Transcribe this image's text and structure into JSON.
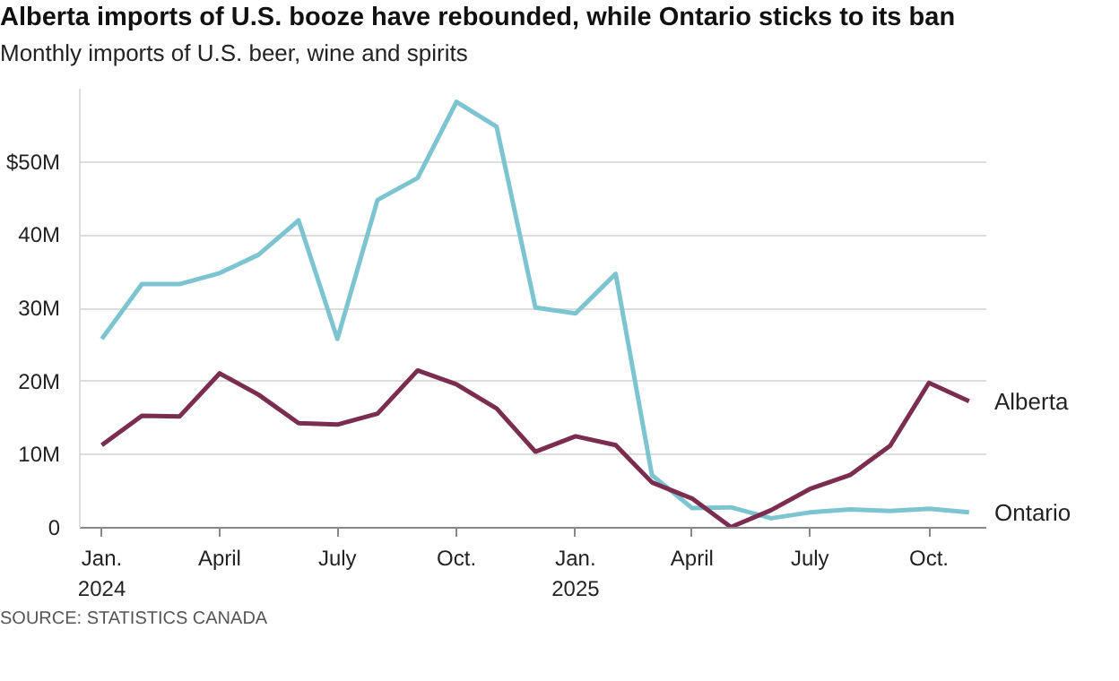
{
  "chart_data": {
    "type": "line",
    "title": "Alberta imports of U.S. booze have rebounded, while Ontario sticks to its ban",
    "subtitle": "Monthly imports of U.S. beer, wine and spirits",
    "annotations": [
      "SOURCE: STATISTICS CANADA"
    ],
    "x": [
      "2024-01",
      "2024-02",
      "2024-03",
      "2024-04",
      "2024-05",
      "2024-06",
      "2024-07",
      "2024-08",
      "2024-09",
      "2024-10",
      "2024-11",
      "2024-12",
      "2025-01",
      "2025-02",
      "2025-03",
      "2025-04",
      "2025-05",
      "2025-06",
      "2025-07",
      "2025-08",
      "2025-09",
      "2025-10",
      "2025-11"
    ],
    "series": [
      {
        "name": "Ontario",
        "color": "#7cc4cf",
        "values": [
          25.8,
          33.3,
          33.3,
          34.8,
          37.3,
          42.0,
          25.8,
          44.8,
          47.8,
          58.2,
          54.8,
          30.1,
          29.3,
          34.7,
          7.2,
          2.7,
          2.8,
          1.3,
          2.1,
          2.5,
          2.3,
          2.6,
          2.1
        ]
      },
      {
        "name": "Alberta",
        "color": "#7b2d50",
        "values": [
          11.3,
          15.3,
          15.2,
          21.1,
          18.2,
          14.3,
          14.1,
          15.6,
          21.5,
          19.6,
          16.3,
          10.4,
          12.5,
          11.3,
          6.2,
          4.0,
          0.1,
          2.4,
          5.3,
          7.2,
          11.2,
          19.8,
          17.3
        ]
      }
    ],
    "xlim": [
      "2023-12-15",
      "2025-11-15"
    ],
    "xticks": [
      {
        "value": "2024-01",
        "label": "Jan.\n2024"
      },
      {
        "value": "2024-04",
        "label": "April"
      },
      {
        "value": "2024-07",
        "label": "July"
      },
      {
        "value": "2024-10",
        "label": "Oct."
      },
      {
        "value": "2025-01",
        "label": "Jan.\n2025"
      },
      {
        "value": "2025-04",
        "label": "April"
      },
      {
        "value": "2025-07",
        "label": "July"
      },
      {
        "value": "2025-10",
        "label": "Oct."
      }
    ],
    "ylim": [
      0,
      60
    ],
    "yticks": [
      0,
      {
        "value": 10,
        "label": "10M"
      },
      {
        "value": 20,
        "label": "20M"
      },
      {
        "value": 30,
        "label": "30M"
      },
      {
        "value": 40,
        "label": "40M"
      },
      {
        "value": 50,
        "label": "$50M"
      }
    ],
    "grid": "y",
    "legend": false,
    "line_style": "solid",
    "marker": "none"
  }
}
